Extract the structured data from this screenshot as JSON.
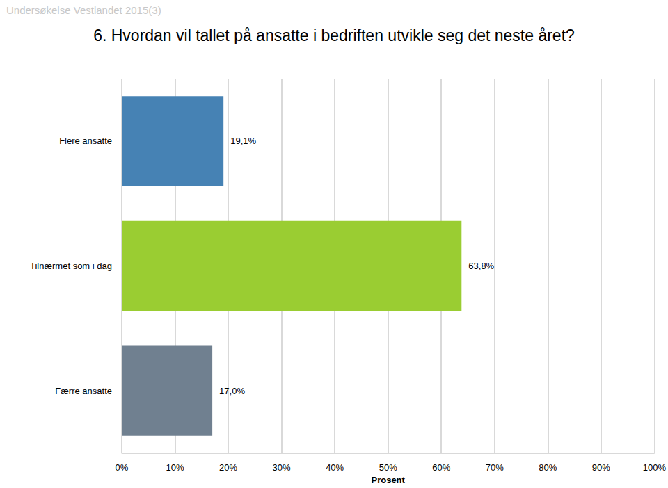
{
  "chart_data": {
    "type": "bar",
    "orientation": "horizontal",
    "title": "6. Hvordan vil tallet på ansatte i bedriften utvikle seg det neste året?",
    "subtitle": "Undersøkelse Vestlandet 2015(3)",
    "x_label": "Prosent",
    "categories": [
      "Flere ansatte",
      "Tilnærmet som i dag",
      "Færre ansatte"
    ],
    "values": [
      19.1,
      63.8,
      17.0
    ],
    "value_labels": [
      "19,1%",
      "63,8%",
      "17,0%"
    ],
    "colors": [
      "#4682b4",
      "#9acd32",
      "#708090"
    ],
    "xlim": [
      0,
      100
    ],
    "xticks": [
      {
        "value": 0,
        "label": "0%"
      },
      {
        "value": 10,
        "label": "10%"
      },
      {
        "value": 20,
        "label": "20%"
      },
      {
        "value": 30,
        "label": "30%"
      },
      {
        "value": 40,
        "label": "40%"
      },
      {
        "value": 50,
        "label": "50%"
      },
      {
        "value": 60,
        "label": "60%"
      },
      {
        "value": 70,
        "label": "70%"
      },
      {
        "value": 80,
        "label": "80%"
      },
      {
        "value": 90,
        "label": "90%"
      },
      {
        "value": 100,
        "label": "100%"
      }
    ],
    "grid": true,
    "data_labels": true
  }
}
